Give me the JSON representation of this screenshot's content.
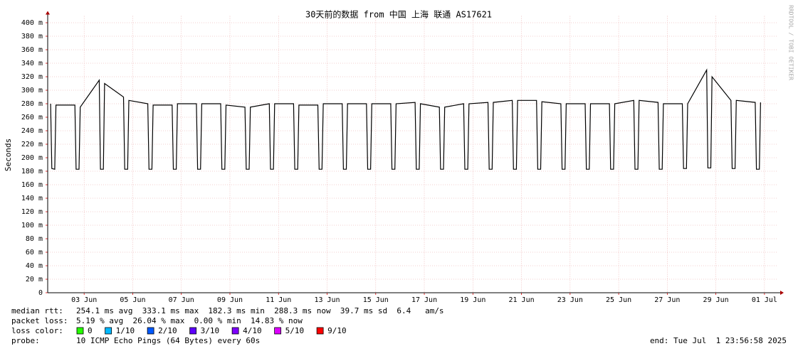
{
  "chart_data": {
    "type": "line",
    "title": "30天前的数据 from 中国 上海 联通 AS17621",
    "ylabel": "Seconds",
    "watermark": "RRDTOOL / TOBI OETIKER",
    "xlim": [
      0,
      30.06
    ],
    "xticks": [
      {
        "value": 1.5,
        "label": "03 Jun"
      },
      {
        "value": 3.5,
        "label": "05 Jun"
      },
      {
        "value": 5.5,
        "label": "07 Jun"
      },
      {
        "value": 7.5,
        "label": "09 Jun"
      },
      {
        "value": 9.5,
        "label": "11 Jun"
      },
      {
        "value": 11.5,
        "label": "13 Jun"
      },
      {
        "value": 13.5,
        "label": "15 Jun"
      },
      {
        "value": 15.5,
        "label": "17 Jun"
      },
      {
        "value": 17.5,
        "label": "19 Jun"
      },
      {
        "value": 19.5,
        "label": "21 Jun"
      },
      {
        "value": 21.5,
        "label": "23 Jun"
      },
      {
        "value": 23.5,
        "label": "25 Jun"
      },
      {
        "value": 25.5,
        "label": "27 Jun"
      },
      {
        "value": 27.5,
        "label": "29 Jun"
      },
      {
        "value": 29.5,
        "label": "01 Jul"
      }
    ],
    "ylim": [
      0,
      0.41
    ],
    "yticks": [
      0,
      {
        "value": 0.02,
        "label": "20 m"
      },
      {
        "value": 0.04,
        "label": "40 m"
      },
      {
        "value": 0.06,
        "label": "60 m"
      },
      {
        "value": 0.08,
        "label": "80 m"
      },
      {
        "value": 0.1,
        "label": "100 m"
      },
      {
        "value": 0.12,
        "label": "120 m"
      },
      {
        "value": 0.14,
        "label": "140 m"
      },
      {
        "value": 0.16,
        "label": "160 m"
      },
      {
        "value": 0.18,
        "label": "180 m"
      },
      {
        "value": 0.2,
        "label": "200 m"
      },
      {
        "value": 0.22,
        "label": "220 m"
      },
      {
        "value": 0.24,
        "label": "240 m"
      },
      {
        "value": 0.26,
        "label": "260 m"
      },
      {
        "value": 0.28,
        "label": "280 m"
      },
      {
        "value": 0.3,
        "label": "300 m"
      },
      {
        "value": 0.32,
        "label": "320 m"
      },
      {
        "value": 0.34,
        "label": "340 m"
      },
      {
        "value": 0.36,
        "label": "360 m"
      },
      {
        "value": 0.38,
        "label": "380 m"
      },
      {
        "value": 0.4,
        "label": "400 m"
      }
    ],
    "grid": true,
    "x": [
      0.12,
      0.17,
      0.29,
      0.34,
      1.12,
      1.17,
      1.29,
      1.34,
      2.12,
      2.17,
      2.29,
      2.34,
      3.12,
      3.17,
      3.29,
      3.34,
      4.12,
      4.17,
      4.29,
      4.34,
      5.12,
      5.17,
      5.29,
      5.34,
      6.12,
      6.17,
      6.29,
      6.34,
      7.12,
      7.17,
      7.29,
      7.34,
      8.12,
      8.17,
      8.29,
      8.34,
      9.12,
      9.17,
      9.29,
      9.34,
      10.12,
      10.17,
      10.29,
      10.34,
      11.12,
      11.17,
      11.29,
      11.34,
      12.12,
      12.17,
      12.29,
      12.34,
      13.12,
      13.17,
      13.29,
      13.34,
      14.12,
      14.17,
      14.29,
      14.34,
      15.12,
      15.17,
      15.29,
      15.34,
      16.12,
      16.17,
      16.29,
      16.34,
      17.12,
      17.17,
      17.29,
      17.34,
      18.12,
      18.17,
      18.29,
      18.34,
      19.12,
      19.17,
      19.29,
      19.34,
      20.12,
      20.17,
      20.29,
      20.34,
      21.12,
      21.17,
      21.29,
      21.34,
      22.12,
      22.17,
      22.29,
      22.34,
      23.12,
      23.17,
      23.29,
      23.34,
      24.12,
      24.17,
      24.29,
      24.34,
      25.12,
      25.17,
      25.29,
      25.34,
      26.12,
      26.17,
      26.29,
      26.34,
      27.12,
      27.17,
      27.29,
      27.34,
      28.12,
      28.17,
      28.29,
      28.34,
      29.12,
      29.17,
      29.29,
      29.34
    ],
    "series": [
      {
        "name": "median rtt",
        "color": "#000000",
        "values": [
          0.28,
          0.184,
          0.183,
          0.278,
          0.278,
          0.183,
          0.183,
          0.275,
          0.315,
          0.183,
          0.183,
          0.31,
          0.29,
          0.183,
          0.183,
          0.285,
          0.28,
          0.183,
          0.183,
          0.278,
          0.278,
          0.183,
          0.183,
          0.28,
          0.28,
          0.183,
          0.183,
          0.28,
          0.28,
          0.183,
          0.183,
          0.278,
          0.275,
          0.183,
          0.183,
          0.275,
          0.28,
          0.183,
          0.183,
          0.28,
          0.28,
          0.183,
          0.183,
          0.278,
          0.278,
          0.183,
          0.183,
          0.28,
          0.28,
          0.183,
          0.183,
          0.28,
          0.28,
          0.183,
          0.183,
          0.28,
          0.28,
          0.183,
          0.183,
          0.28,
          0.282,
          0.183,
          0.183,
          0.28,
          0.275,
          0.183,
          0.183,
          0.275,
          0.28,
          0.183,
          0.183,
          0.28,
          0.282,
          0.183,
          0.183,
          0.282,
          0.285,
          0.183,
          0.183,
          0.285,
          0.285,
          0.183,
          0.183,
          0.283,
          0.28,
          0.183,
          0.183,
          0.28,
          0.28,
          0.183,
          0.183,
          0.28,
          0.28,
          0.183,
          0.183,
          0.28,
          0.285,
          0.183,
          0.183,
          0.285,
          0.282,
          0.183,
          0.183,
          0.28,
          0.28,
          0.184,
          0.184,
          0.28,
          0.33,
          0.185,
          0.185,
          0.32,
          0.285,
          0.184,
          0.184,
          0.285,
          0.282,
          0.183,
          0.183,
          0.282
        ]
      }
    ],
    "legend_lines": [
      {
        "label": "median rtt:",
        "text": "254.1 ms avg  333.1 ms max  182.3 ms min  288.3 ms now  39.7 ms sd  6.4   am/s"
      },
      {
        "label": "packet loss:",
        "text": "5.19 % avg  26.04 % max  0.00 % min  14.83 % now"
      },
      {
        "label": "probe:",
        "text": "10 ICMP Echo Pings (64 Bytes) every 60s"
      }
    ],
    "loss_color": {
      "label": "loss color:",
      "items": [
        {
          "label": "0",
          "color": "#26ff00"
        },
        {
          "label": "1/10",
          "color": "#00b8ff"
        },
        {
          "label": "2/10",
          "color": "#0059ff"
        },
        {
          "label": "3/10",
          "color": "#5e00ff"
        },
        {
          "label": "4/10",
          "color": "#7e00ff"
        },
        {
          "label": "5/10",
          "color": "#dd00ff"
        },
        {
          "label": "9/10",
          "color": "#ff0000"
        }
      ]
    },
    "end": "end: Tue Jul  1 23:56:58 2025"
  }
}
